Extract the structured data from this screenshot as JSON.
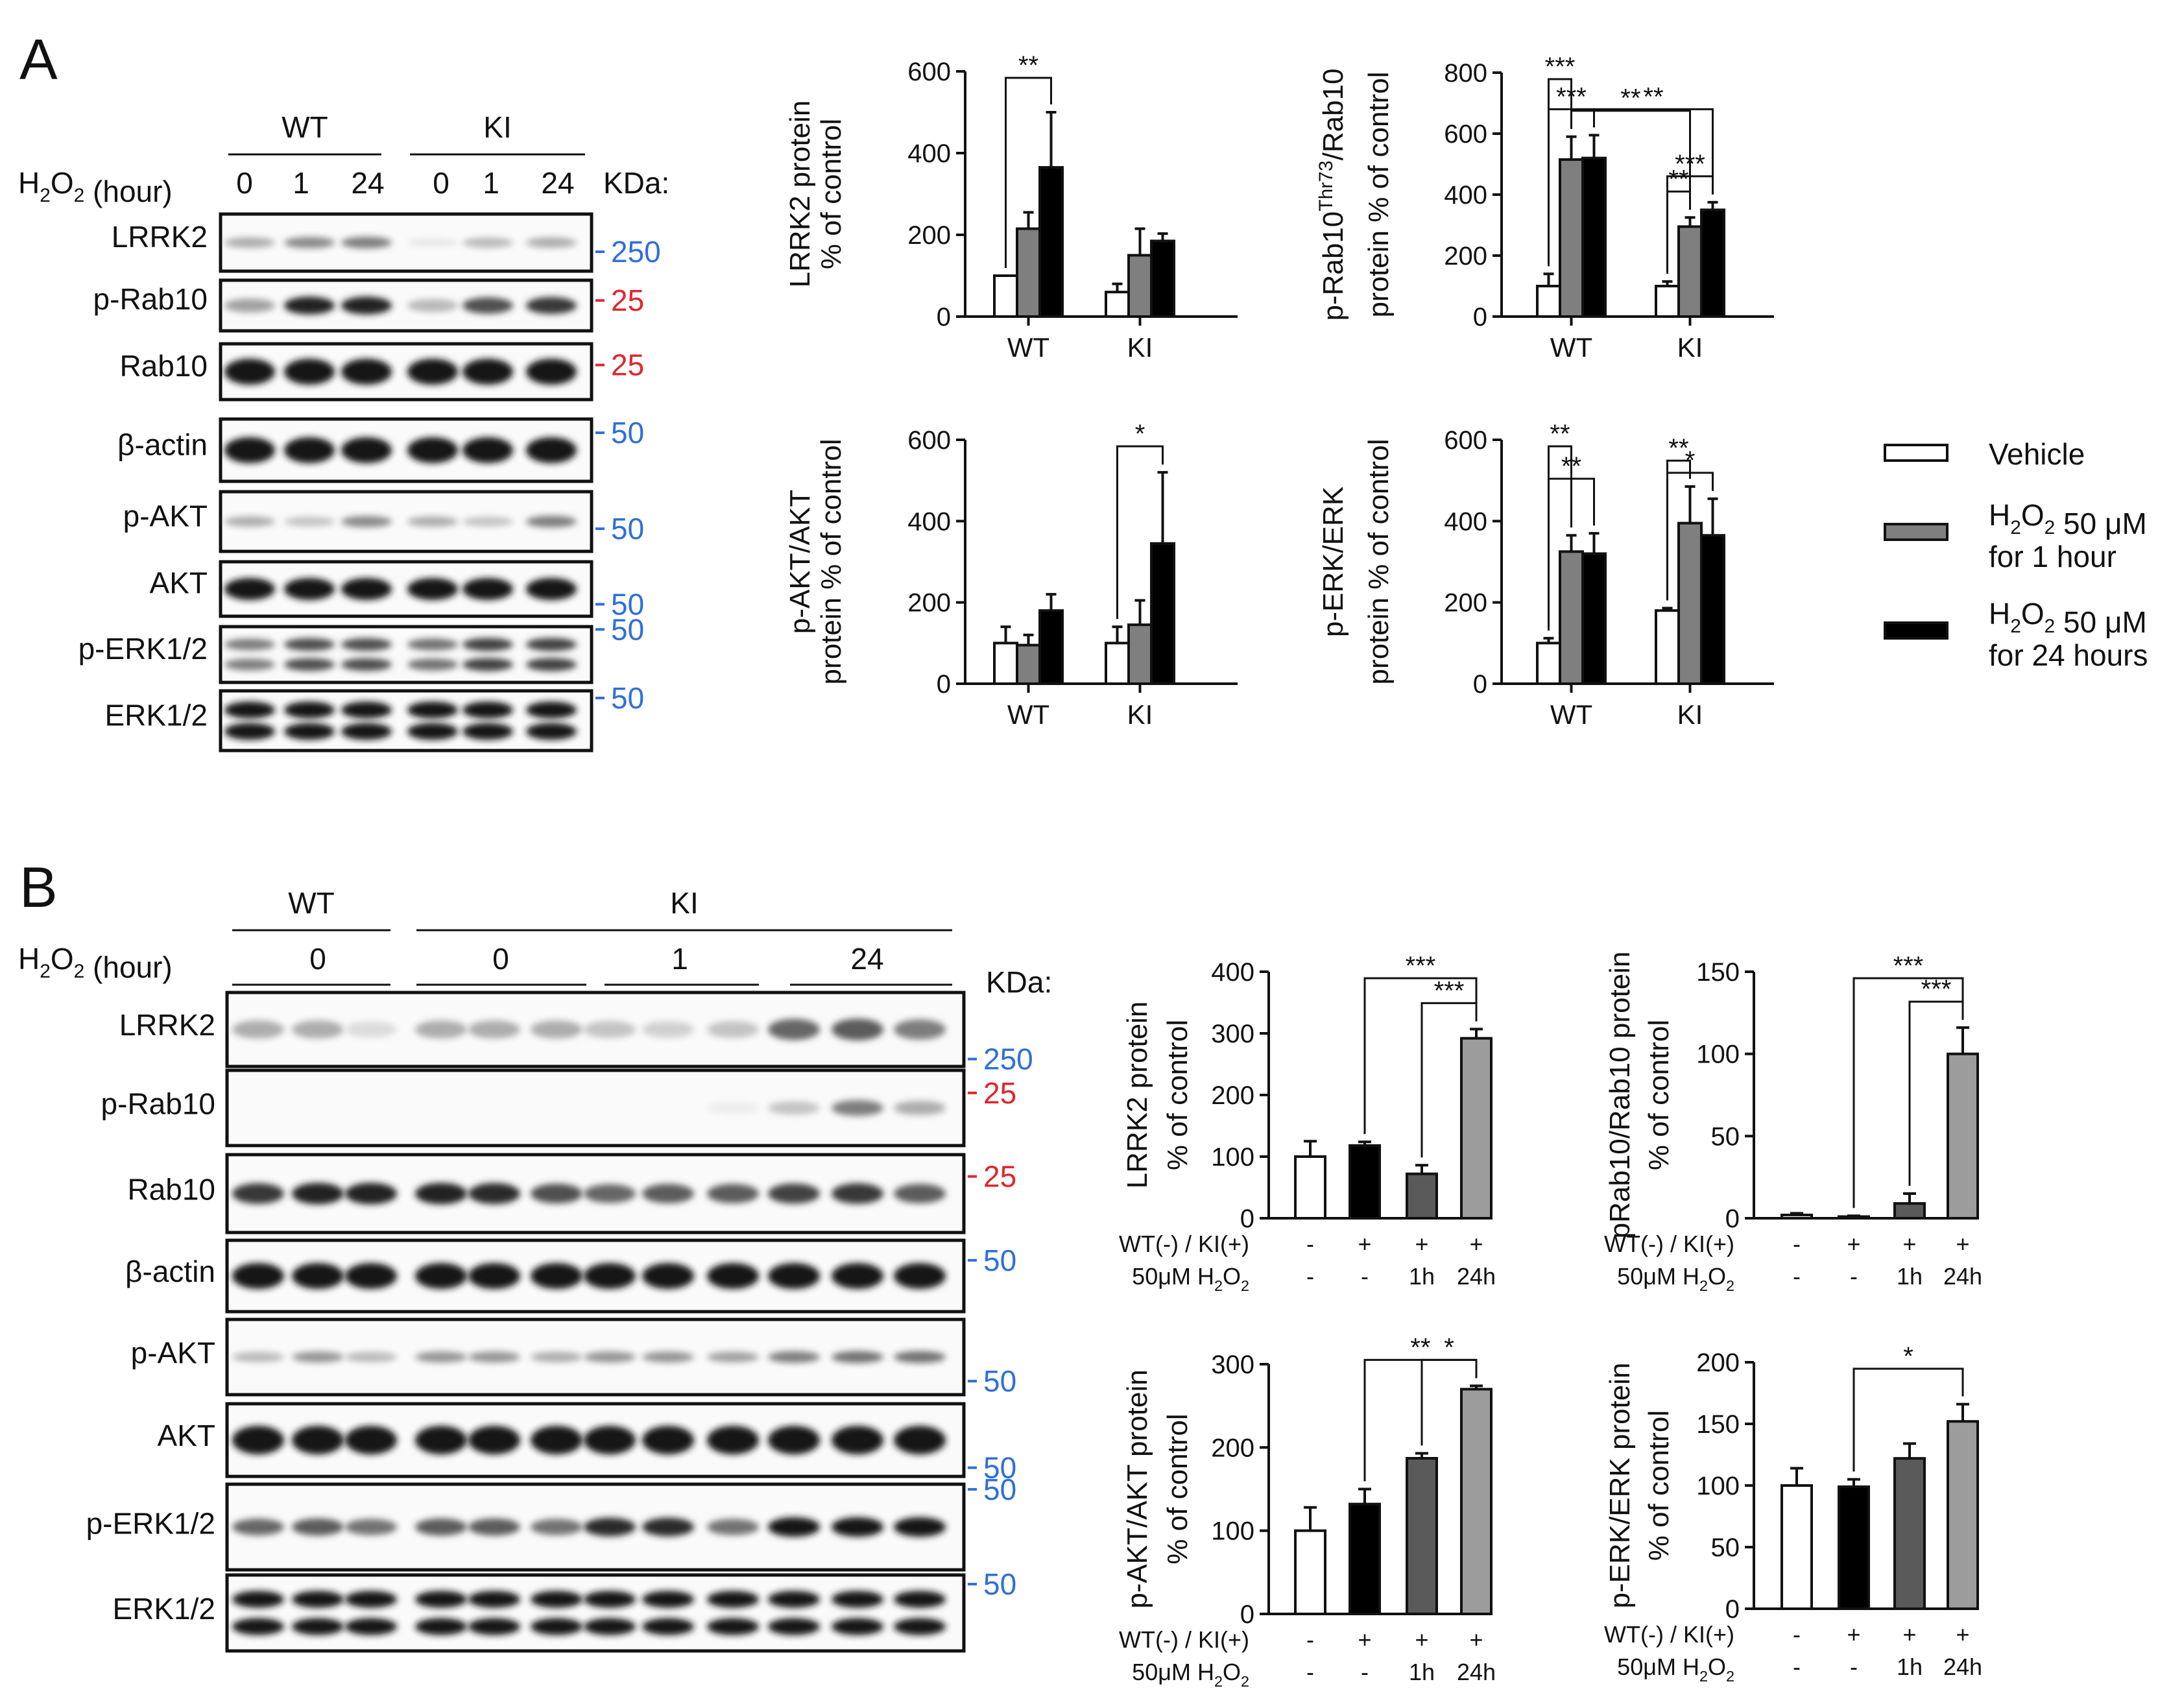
{
  "panels": {
    "a": "A",
    "b": "B"
  },
  "blot_a": {
    "groups": [
      "WT",
      "KI"
    ],
    "time_label": "H2O2 (hour)",
    "times": [
      "0",
      "1",
      "24",
      "0",
      "1",
      "24"
    ],
    "kda_label": "KDa:",
    "rows": [
      {
        "name": "LRRK2",
        "kda": "250",
        "kda_color": "#2f6fd8"
      },
      {
        "name": "p-Rab10",
        "kda": "25",
        "kda_color": "#e0262d"
      },
      {
        "name": "Rab10",
        "kda": "25",
        "kda_color": "#e0262d"
      },
      {
        "name": "β-actin",
        "kda": "50",
        "kda_color": "#2f6fd8"
      },
      {
        "name": "p-AKT",
        "kda": "50",
        "kda_color": "#2f6fd8"
      },
      {
        "name": "AKT",
        "kda": "50",
        "kda_color": "#2f6fd8"
      },
      {
        "name": "p-ERK1/2",
        "kda": "50",
        "kda_color": "#2f6fd8"
      },
      {
        "name": "ERK1/2",
        "kda": "50",
        "kda_color": "#2f6fd8"
      }
    ]
  },
  "blot_b": {
    "groups": [
      "WT",
      "KI"
    ],
    "time_label": "H2O2 (hour)",
    "times": [
      "0",
      "0",
      "1",
      "24"
    ],
    "kda_label": "KDa:",
    "rows": [
      {
        "name": "LRRK2",
        "kda": "250",
        "kda_color": "#2f6fd8"
      },
      {
        "name": "p-Rab10",
        "kda": "25",
        "kda_color": "#e0262d"
      },
      {
        "name": "Rab10",
        "kda": "25",
        "kda_color": "#e0262d"
      },
      {
        "name": "β-actin",
        "kda": "50",
        "kda_color": "#2f6fd8"
      },
      {
        "name": "p-AKT",
        "kda": "50",
        "kda_color": "#2f6fd8"
      },
      {
        "name": "AKT",
        "kda": "50",
        "kda_color": "#2f6fd8"
      },
      {
        "name": "p-ERK1/2",
        "kda": "50",
        "kda_color": "#2f6fd8"
      },
      {
        "name": "ERK1/2",
        "kda": "50",
        "kda_color": "#2f6fd8"
      }
    ]
  },
  "legend": {
    "items": [
      {
        "line1": "Vehicle",
        "line2": "",
        "color": "#ffffff"
      },
      {
        "line1": "H2O2 50 μM",
        "line2": "for 1 hour",
        "color": "#7f7f7f"
      },
      {
        "line1": "H2O2 50 μM",
        "line2": "for 24 hours",
        "color": "#000000"
      }
    ]
  },
  "chart_data": [
    {
      "type": "bar",
      "ylabel_lines": [
        "LRRK2 protein",
        "% of control"
      ],
      "categories": [
        "WT",
        "KI"
      ],
      "ylim": [
        0,
        600
      ],
      "yticks": [
        0,
        200,
        400,
        600
      ],
      "series": [
        {
          "color": "#ffffff",
          "values": [
            100,
            60
          ],
          "errors": [
            0,
            20
          ]
        },
        {
          "color": "#7f7f7f",
          "values": [
            215,
            150
          ],
          "errors": [
            40,
            65
          ]
        },
        {
          "color": "#000000",
          "values": [
            365,
            185
          ],
          "errors": [
            135,
            18
          ]
        }
      ],
      "annotations": [
        {
          "text": "**",
          "from": [
            0,
            0
          ],
          "to": [
            0,
            2
          ]
        }
      ]
    },
    {
      "type": "bar",
      "ylabel_lines": [
        "p-Rab10Thr73/Rab10",
        "protein % of control"
      ],
      "categories": [
        "WT",
        "KI"
      ],
      "ylim": [
        0,
        800
      ],
      "yticks": [
        0,
        200,
        400,
        600,
        800
      ],
      "series": [
        {
          "color": "#ffffff",
          "values": [
            100,
            100
          ],
          "errors": [
            40,
            15
          ]
        },
        {
          "color": "#7f7f7f",
          "values": [
            515,
            295
          ],
          "errors": [
            75,
            30
          ]
        },
        {
          "color": "#000000",
          "values": [
            520,
            350
          ],
          "errors": [
            75,
            25
          ]
        }
      ],
      "annotations": [
        {
          "text": "***",
          "from": [
            0,
            0
          ],
          "to": [
            0,
            1
          ]
        },
        {
          "text": "***",
          "from": [
            0,
            0
          ],
          "to": [
            0,
            2
          ]
        },
        {
          "text": "**",
          "from": [
            0,
            1
          ],
          "to": [
            1,
            1
          ]
        },
        {
          "text": "**",
          "from": [
            0,
            2
          ],
          "to": [
            1,
            2
          ]
        },
        {
          "text": "**",
          "from": [
            1,
            0
          ],
          "to": [
            1,
            1
          ]
        },
        {
          "text": "***",
          "from": [
            1,
            0
          ],
          "to": [
            1,
            2
          ]
        }
      ]
    },
    {
      "type": "bar",
      "ylabel_lines": [
        "p-AKT/AKT",
        "protein % of control"
      ],
      "categories": [
        "WT",
        "KI"
      ],
      "ylim": [
        0,
        600
      ],
      "yticks": [
        0,
        200,
        400,
        600
      ],
      "series": [
        {
          "color": "#ffffff",
          "values": [
            100,
            100
          ],
          "errors": [
            40,
            40
          ]
        },
        {
          "color": "#7f7f7f",
          "values": [
            95,
            145
          ],
          "errors": [
            25,
            60
          ]
        },
        {
          "color": "#000000",
          "values": [
            180,
            345
          ],
          "errors": [
            40,
            175
          ]
        }
      ],
      "annotations": [
        {
          "text": "*",
          "from": [
            1,
            0
          ],
          "to": [
            1,
            2
          ]
        }
      ]
    },
    {
      "type": "bar",
      "ylabel_lines": [
        "p-ERK/ERK",
        "protein % of control"
      ],
      "categories": [
        "WT",
        "KI"
      ],
      "ylim": [
        0,
        600
      ],
      "yticks": [
        0,
        200,
        400,
        600
      ],
      "series": [
        {
          "color": "#ffffff",
          "values": [
            100,
            180
          ],
          "errors": [
            12,
            6
          ]
        },
        {
          "color": "#7f7f7f",
          "values": [
            325,
            395
          ],
          "errors": [
            40,
            90
          ]
        },
        {
          "color": "#000000",
          "values": [
            320,
            365
          ],
          "errors": [
            50,
            90
          ]
        }
      ],
      "annotations": [
        {
          "text": "**",
          "from": [
            0,
            0
          ],
          "to": [
            0,
            1
          ]
        },
        {
          "text": "**",
          "from": [
            0,
            0
          ],
          "to": [
            0,
            2
          ]
        },
        {
          "text": "**",
          "from": [
            1,
            0
          ],
          "to": [
            1,
            1
          ]
        },
        {
          "text": "*",
          "from": [
            1,
            0
          ],
          "to": [
            1,
            2
          ]
        }
      ]
    },
    {
      "type": "bar",
      "ylabel_lines": [
        "LRRK2 protein",
        "% of control"
      ],
      "ylim": [
        0,
        400
      ],
      "yticks": [
        0,
        100,
        200,
        300,
        400
      ],
      "bars": [
        {
          "color": "#ffffff",
          "value": 100,
          "error": 25
        },
        {
          "color": "#000000",
          "value": 118,
          "error": 6
        },
        {
          "color": "#5a5a5a",
          "value": 72,
          "error": 14
        },
        {
          "color": "#9c9c9c",
          "value": 292,
          "error": 15
        }
      ],
      "row1_label": "WT(-) / KI(+)",
      "row1": [
        "-",
        "+",
        "+",
        "+"
      ],
      "row2_label": "50μM H2O2",
      "row2": [
        "-",
        "-",
        "1h",
        "24h"
      ],
      "annotations": [
        {
          "text": "***",
          "from": 1,
          "to": 3
        },
        {
          "text": "***",
          "from": 2,
          "to": 3
        }
      ]
    },
    {
      "type": "bar",
      "ylabel_lines": [
        "pRab10/Rab10 protein",
        "% of control"
      ],
      "ylim": [
        0,
        150
      ],
      "yticks": [
        0,
        50,
        100,
        150
      ],
      "bars": [
        {
          "color": "#ffffff",
          "value": 2,
          "error": 1
        },
        {
          "color": "#000000",
          "value": 1,
          "error": 0.5
        },
        {
          "color": "#5a5a5a",
          "value": 9,
          "error": 6
        },
        {
          "color": "#9c9c9c",
          "value": 100,
          "error": 16
        }
      ],
      "row1_label": "WT(-) / KI(+)",
      "row1": [
        "-",
        "+",
        "+",
        "+"
      ],
      "row2_label": "50μM H2O2",
      "row2": [
        "-",
        "-",
        "1h",
        "24h"
      ],
      "annotations": [
        {
          "text": "***",
          "from": 1,
          "to": 3
        },
        {
          "text": "***",
          "from": 2,
          "to": 3
        }
      ]
    },
    {
      "type": "bar",
      "ylabel_lines": [
        "p-AKT/AKT protein",
        "% of control"
      ],
      "ylim": [
        0,
        300
      ],
      "yticks": [
        0,
        100,
        200,
        300
      ],
      "bars": [
        {
          "color": "#ffffff",
          "value": 100,
          "error": 28
        },
        {
          "color": "#000000",
          "value": 132,
          "error": 18
        },
        {
          "color": "#5a5a5a",
          "value": 187,
          "error": 6
        },
        {
          "color": "#9c9c9c",
          "value": 270,
          "error": 4
        }
      ],
      "row1_label": "WT(-) / KI(+)",
      "row1": [
        "-",
        "+",
        "+",
        "+"
      ],
      "row2_label": "50μM H2O2",
      "row2": [
        "-",
        "-",
        "1h",
        "24h"
      ],
      "annotations": [
        {
          "text": "**",
          "from": 1,
          "to": 3
        },
        {
          "text": "*",
          "from": 2,
          "to": 3
        }
      ]
    },
    {
      "type": "bar",
      "ylabel_lines": [
        "p-ERK/ERK protein",
        "% of control"
      ],
      "ylim": [
        0,
        200
      ],
      "yticks": [
        0,
        50,
        100,
        150,
        200
      ],
      "bars": [
        {
          "color": "#ffffff",
          "value": 100,
          "error": 14
        },
        {
          "color": "#000000",
          "value": 99,
          "error": 6
        },
        {
          "color": "#5a5a5a",
          "value": 122,
          "error": 12
        },
        {
          "color": "#9c9c9c",
          "value": 152,
          "error": 14
        }
      ],
      "row1_label": "WT(-) / KI(+)",
      "row1": [
        "-",
        "+",
        "+",
        "+"
      ],
      "row2_label": "50μM H2O2",
      "row2": [
        "-",
        "-",
        "1h",
        "24h"
      ],
      "annotations": [
        {
          "text": "*",
          "from": 1,
          "to": 3
        }
      ]
    }
  ]
}
